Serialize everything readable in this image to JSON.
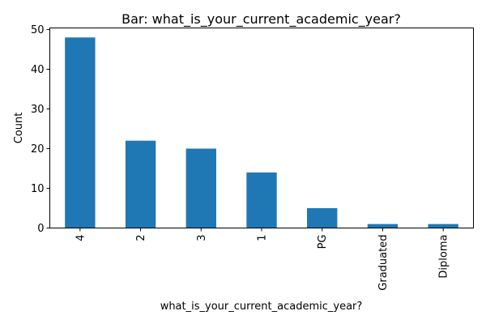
{
  "chart_data": {
    "type": "bar",
    "title": "Bar: what_is_your_current_academic_year?",
    "xlabel": "what_is_your_current_academic_year?",
    "ylabel": "Count",
    "categories": [
      "4",
      "2",
      "3",
      "1",
      "PG",
      "Graduated",
      "Diploma"
    ],
    "values": [
      48,
      22,
      20,
      14,
      5,
      1,
      1
    ],
    "ylim": [
      0,
      50.4
    ],
    "yticks": [
      0,
      10,
      20,
      30,
      40,
      50
    ],
    "grid": false,
    "legend": "none",
    "bar_color": "#1f77b4"
  }
}
